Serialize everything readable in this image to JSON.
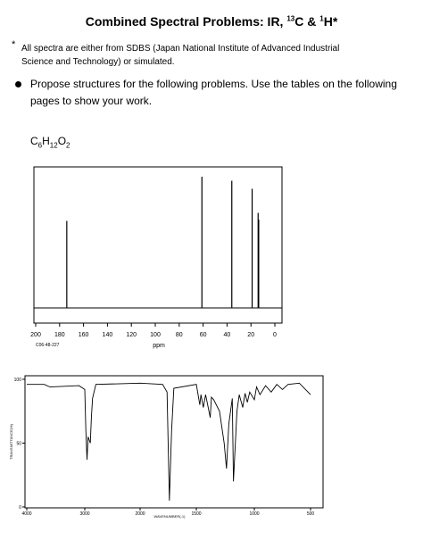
{
  "header": {
    "title": {
      "text": "Combined Spectral Problems:  IR, ",
      "sup1": "13",
      "mid": "C & ",
      "sup2": "1",
      "end": "H*"
    }
  },
  "footnote": {
    "mark": "*",
    "text": "All spectra are either from SDBS (Japan National Institute of Advanced Industrial Science and Technology) or simulated."
  },
  "instruction": "Propose structures for the following problems.  Use the tables on the following pages to show your work.",
  "formula": {
    "parts": [
      "C",
      "6",
      "H",
      "12",
      "O",
      "2"
    ]
  },
  "nmr": {
    "type": "stick",
    "x": [
      174,
      61,
      36,
      19,
      14,
      13.5
    ],
    "values": [
      65,
      98,
      95,
      89,
      71,
      66
    ],
    "xlim": [
      200,
      0
    ],
    "xticks": [
      200,
      180,
      160,
      140,
      120,
      100,
      80,
      60,
      40,
      20,
      0
    ],
    "xlabel": "ppm",
    "code": "C06-48-227",
    "color": "#000000"
  },
  "ir": {
    "type": "line",
    "x": [
      4000,
      3700,
      3600,
      3100,
      3000,
      2980,
      2960,
      2940,
      2900,
      2880,
      2860,
      2800,
      2000,
      1800,
      1760,
      1740,
      1720,
      1700,
      1500,
      1470,
      1460,
      1440,
      1420,
      1380,
      1370,
      1350,
      1300,
      1260,
      1240,
      1220,
      1190,
      1180,
      1150,
      1130,
      1100,
      1080,
      1060,
      1040,
      1000,
      980,
      950,
      900,
      850,
      800,
      750,
      700,
      600,
      500
    ],
    "values": [
      96,
      96,
      94,
      95,
      92,
      60,
      37,
      55,
      50,
      70,
      85,
      96,
      97,
      96,
      90,
      5,
      60,
      93,
      96,
      80,
      88,
      78,
      88,
      70,
      86,
      84,
      75,
      50,
      30,
      65,
      85,
      20,
      75,
      88,
      78,
      89,
      82,
      90,
      84,
      94,
      88,
      95,
      90,
      96,
      92,
      96,
      97,
      88
    ],
    "xlim": [
      4000,
      500
    ],
    "xticks": [
      4000,
      3000,
      2000,
      1500,
      1000,
      500
    ],
    "ylim": [
      0,
      100
    ],
    "yticks": [
      0,
      50,
      100
    ],
    "xlabel": "WAVENUMBER(-1)",
    "ylabel": "TRANSMITTANCE(%)",
    "color": "#000000"
  }
}
